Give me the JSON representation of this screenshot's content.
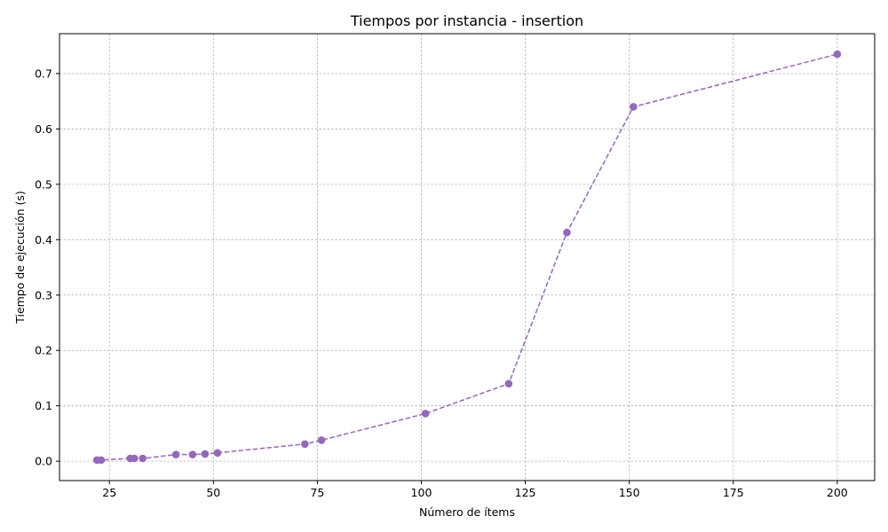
{
  "chart_data": {
    "type": "line",
    "title": "Tiempos por instancia - insertion",
    "xlabel": "Número de ítems",
    "ylabel": "Tiempo de ejecución (s)",
    "xlim": [
      13,
      209
    ],
    "ylim": [
      -0.035,
      0.772
    ],
    "x_ticks": [
      25,
      50,
      75,
      100,
      125,
      150,
      175,
      200
    ],
    "x_tick_labels": [
      "25",
      "50",
      "75",
      "100",
      "125",
      "150",
      "175",
      "200"
    ],
    "y_ticks": [
      0.0,
      0.1,
      0.2,
      0.3,
      0.4,
      0.5,
      0.6,
      0.7
    ],
    "y_tick_labels": [
      "0.0",
      "0.1",
      "0.2",
      "0.3",
      "0.4",
      "0.5",
      "0.6",
      "0.7"
    ],
    "grid": true,
    "line_style": "dashed",
    "marker": "circle",
    "color": "#9467bd",
    "series": [
      {
        "x": [
          22,
          23,
          30,
          31,
          33,
          41,
          45,
          48,
          51,
          72,
          76,
          101,
          121,
          135,
          151,
          200
        ],
        "y": [
          0.002,
          0.002,
          0.005,
          0.005,
          0.005,
          0.012,
          0.012,
          0.013,
          0.015,
          0.031,
          0.038,
          0.086,
          0.14,
          0.413,
          0.64,
          0.735
        ]
      }
    ]
  }
}
